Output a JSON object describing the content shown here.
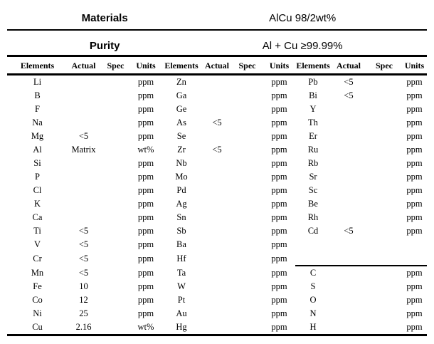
{
  "header": {
    "materials_label": "Materials",
    "materials_value": "AlCu 98/2wt%",
    "purity_label": "Purity",
    "purity_value": "Al + Cu ≥99.99%"
  },
  "table": {
    "column_headers": [
      "Elements",
      "Actual",
      "Spec",
      "Units",
      "Elements",
      "Actual",
      "Spec",
      "Units",
      "Elements",
      "Actual",
      "Spec",
      "Units"
    ],
    "group3_separator_before_row": 14,
    "rows": [
      [
        "Li",
        "",
        "",
        "ppm",
        "Zn",
        "",
        "",
        "ppm",
        "Pb",
        "<5",
        "",
        "ppm"
      ],
      [
        "B",
        "",
        "",
        "ppm",
        "Ga",
        "",
        "",
        "ppm",
        "Bi",
        "<5",
        "",
        "ppm"
      ],
      [
        "F",
        "",
        "",
        "ppm",
        "Ge",
        "",
        "",
        "ppm",
        "Y",
        "",
        "",
        "ppm"
      ],
      [
        "Na",
        "",
        "",
        "ppm",
        "As",
        "<5",
        "",
        "ppm",
        "Th",
        "",
        "",
        "ppm"
      ],
      [
        "Mg",
        "<5",
        "",
        "ppm",
        "Se",
        "",
        "",
        "ppm",
        "Er",
        "",
        "",
        "ppm"
      ],
      [
        "Al",
        "Matrix",
        "",
        "wt%",
        "Zr",
        "<5",
        "",
        "ppm",
        "Ru",
        "",
        "",
        "ppm"
      ],
      [
        "Si",
        "",
        "",
        "ppm",
        "Nb",
        "",
        "",
        "ppm",
        "Rb",
        "",
        "",
        "ppm"
      ],
      [
        "P",
        "",
        "",
        "ppm",
        "Mo",
        "",
        "",
        "ppm",
        "Sr",
        "",
        "",
        "ppm"
      ],
      [
        "Cl",
        "",
        "",
        "ppm",
        "Pd",
        "",
        "",
        "ppm",
        "Sc",
        "",
        "",
        "ppm"
      ],
      [
        "K",
        "",
        "",
        "ppm",
        "Ag",
        "",
        "",
        "ppm",
        "Be",
        "",
        "",
        "ppm"
      ],
      [
        "Ca",
        "",
        "",
        "ppm",
        "Sn",
        "",
        "",
        "ppm",
        "Rh",
        "",
        "",
        "ppm"
      ],
      [
        "Ti",
        "<5",
        "",
        "ppm",
        "Sb",
        "",
        "",
        "ppm",
        "Cd",
        "<5",
        "",
        "ppm"
      ],
      [
        "V",
        "<5",
        "",
        "ppm",
        "Ba",
        "",
        "",
        "ppm",
        "",
        "",
        "",
        ""
      ],
      [
        "Cr",
        "<5",
        "",
        "ppm",
        "Hf",
        "",
        "",
        "ppm",
        "",
        "",
        "",
        ""
      ],
      [
        "Mn",
        "<5",
        "",
        "ppm",
        "Ta",
        "",
        "",
        "ppm",
        "C",
        "",
        "",
        "ppm"
      ],
      [
        "Fe",
        "10",
        "",
        "ppm",
        "W",
        "",
        "",
        "ppm",
        "S",
        "",
        "",
        "ppm"
      ],
      [
        "Co",
        "12",
        "",
        "ppm",
        "Pt",
        "",
        "",
        "ppm",
        "O",
        "",
        "",
        "ppm"
      ],
      [
        "Ni",
        "25",
        "",
        "ppm",
        "Au",
        "",
        "",
        "ppm",
        "N",
        "",
        "",
        "ppm"
      ],
      [
        "Cu",
        "2.16",
        "",
        "wt%",
        "Hg",
        "",
        "",
        "ppm",
        "H",
        "",
        "",
        "ppm"
      ]
    ]
  },
  "colors": {
    "background": "#ffffff",
    "text": "#000000",
    "rule": "#000000"
  }
}
